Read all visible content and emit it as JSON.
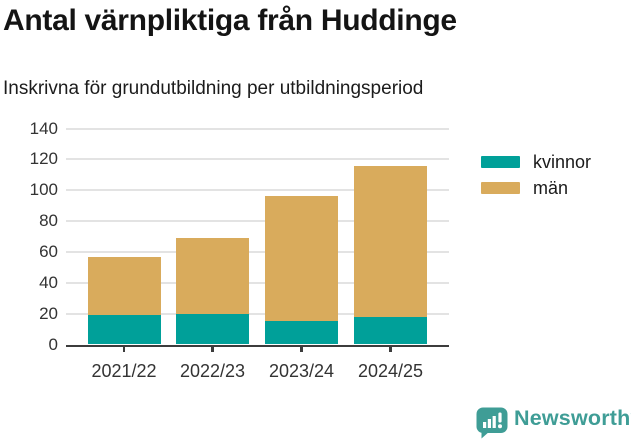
{
  "header": {
    "title": "Antal värnpliktiga från Huddinge",
    "subtitle": "Inskrivna för grundutbildning per utbildningsperiod"
  },
  "chart_data": {
    "type": "bar",
    "stacked": true,
    "title": "Antal värnpliktiga från Huddinge",
    "subtitle": "Inskrivna för grundutbildning per utbildningsperiod",
    "categories": [
      "2021/22",
      "2022/23",
      "2023/24",
      "2024/25"
    ],
    "series": [
      {
        "name": "kvinnor",
        "color": "#00a099",
        "values": [
          19,
          20,
          15,
          18
        ]
      },
      {
        "name": "män",
        "color": "#d9ab5c",
        "values": [
          38,
          49,
          81,
          98
        ]
      }
    ],
    "totals": [
      57,
      69,
      96,
      116
    ],
    "xlabel": "",
    "ylabel": "",
    "ylim": [
      0,
      140
    ],
    "yticks": [
      0,
      20,
      40,
      60,
      80,
      100,
      120,
      140
    ],
    "grid": true,
    "legend_position": "right",
    "colors": {
      "grid": "#e3e3e3",
      "axis": "#3c3c3c",
      "tick_text": "#333333"
    }
  },
  "footer": {
    "brand": "Newsworthy",
    "brand_color": "#3f9d96",
    "logo_icon": "bar-chart-speech-bubble-icon"
  }
}
